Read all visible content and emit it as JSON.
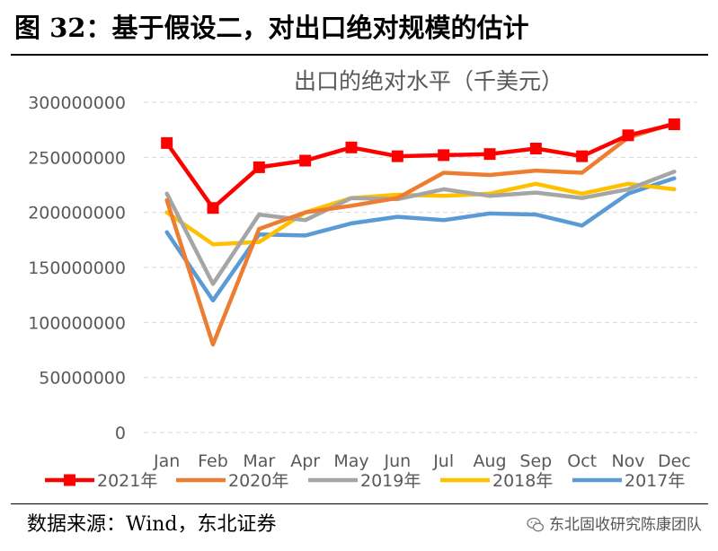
{
  "figure": {
    "title": "图 32：基于假设二，对出口绝对规模的估计",
    "source": "数据来源：Wind，东北证券",
    "watermark": "东北固收研究陈康团队"
  },
  "chart_data": {
    "type": "line",
    "title": "出口的绝对水平（千美元）",
    "xlabel": "",
    "ylabel": "",
    "categories": [
      "Jan",
      "Feb",
      "Mar",
      "Apr",
      "May",
      "Jun",
      "Jul",
      "Aug",
      "Sep",
      "Oct",
      "Nov",
      "Dec"
    ],
    "y_ticks": [
      "0",
      "50000000",
      "100000000",
      "150000000",
      "200000000",
      "250000000",
      "300000000"
    ],
    "ylim": [
      0,
      300000000
    ],
    "grid": "horizontal-dashed",
    "legend_position": "bottom",
    "series": [
      {
        "name": "2021年",
        "color": "#ff0000",
        "marker": "square",
        "values": [
          263000000,
          204000000,
          241000000,
          247000000,
          259000000,
          251000000,
          252000000,
          253000000,
          258000000,
          251000000,
          270000000,
          280000000
        ]
      },
      {
        "name": "2020年",
        "color": "#ed7d31",
        "marker": "none",
        "values": [
          211000000,
          80000000,
          185000000,
          200000000,
          206000000,
          213000000,
          236000000,
          234000000,
          238000000,
          236000000,
          268000000,
          281000000
        ]
      },
      {
        "name": "2019年",
        "color": "#a5a5a5",
        "marker": "none",
        "values": [
          217000000,
          135000000,
          198000000,
          193000000,
          213000000,
          212000000,
          221000000,
          215000000,
          218000000,
          213000000,
          221000000,
          237000000
        ]
      },
      {
        "name": "2018年",
        "color": "#ffc000",
        "marker": "none",
        "values": [
          200000000,
          171000000,
          173000000,
          200000000,
          213000000,
          216000000,
          215000000,
          217000000,
          226000000,
          217000000,
          226000000,
          221000000
        ]
      },
      {
        "name": "2017年",
        "color": "#5b9bd5",
        "marker": "none",
        "values": [
          182000000,
          120000000,
          180000000,
          179000000,
          190000000,
          196000000,
          193000000,
          199000000,
          198000000,
          188000000,
          217000000,
          231000000
        ]
      }
    ]
  }
}
